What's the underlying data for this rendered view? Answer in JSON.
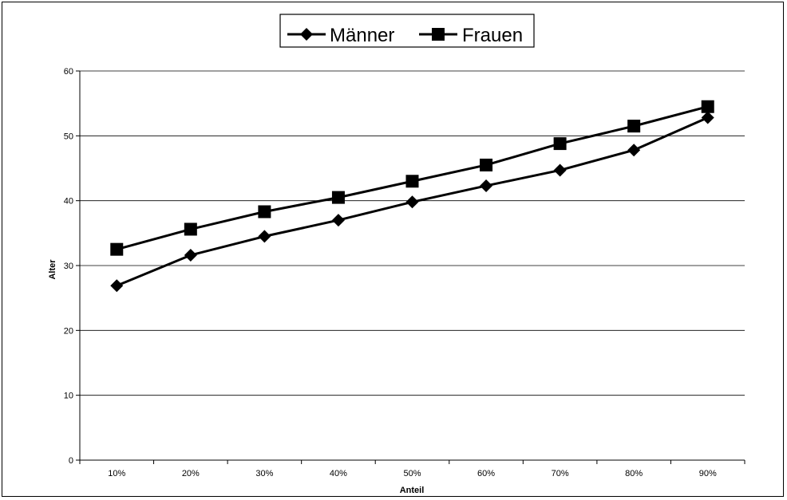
{
  "chart_data": {
    "type": "line",
    "categories": [
      "10%",
      "20%",
      "30%",
      "40%",
      "50%",
      "60%",
      "70%",
      "80%",
      "90%"
    ],
    "series": [
      {
        "name": "Männer",
        "marker": "diamond",
        "values": [
          26.9,
          31.6,
          34.5,
          37.0,
          39.8,
          42.3,
          44.7,
          47.8,
          52.8
        ]
      },
      {
        "name": "Frauen",
        "marker": "square",
        "values": [
          32.5,
          35.6,
          38.3,
          40.5,
          43.0,
          45.5,
          48.8,
          51.5,
          54.5
        ]
      }
    ],
    "title": "",
    "xlabel": "Anteil",
    "ylabel": "Alter",
    "ylim": [
      0,
      60
    ],
    "yticks": [
      "0",
      "10",
      "20",
      "30",
      "40",
      "50",
      "60"
    ],
    "grid": true,
    "legend": "top-center",
    "colors": {
      "line": "#000000",
      "grid": "#000000",
      "background": "#ffffff"
    }
  }
}
